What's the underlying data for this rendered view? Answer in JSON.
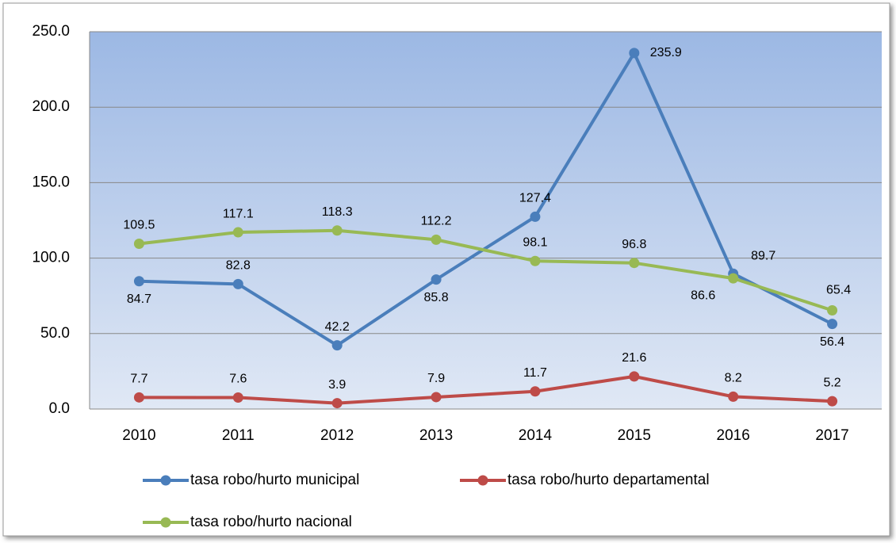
{
  "chart_data": {
    "type": "line",
    "categories": [
      "2010",
      "2011",
      "2012",
      "2013",
      "2014",
      "2015",
      "2016",
      "2017"
    ],
    "series": [
      {
        "name": "tasa robo/hurto municipal",
        "color": "#4a7ebb",
        "values": [
          84.7,
          82.8,
          42.2,
          85.8,
          127.4,
          235.9,
          89.7,
          56.4
        ]
      },
      {
        "name": "tasa robo/hurto departamental",
        "color": "#be4b48",
        "values": [
          7.7,
          7.6,
          3.9,
          7.9,
          11.7,
          21.6,
          8.2,
          5.2
        ]
      },
      {
        "name": "tasa robo/hurto nacional",
        "color": "#98b954",
        "values": [
          109.5,
          117.1,
          118.3,
          112.2,
          98.1,
          96.8,
          86.6,
          65.4
        ]
      }
    ],
    "ylim": [
      0,
      250
    ],
    "yticks": [
      {
        "value": 0,
        "label": "0.0"
      },
      {
        "value": 50,
        "label": "50.0"
      },
      {
        "value": 100,
        "label": "100.0"
      },
      {
        "value": 150,
        "label": "150.0"
      },
      {
        "value": 200,
        "label": "200.0"
      },
      {
        "value": 250,
        "label": "250.0"
      }
    ],
    "grid": true
  }
}
